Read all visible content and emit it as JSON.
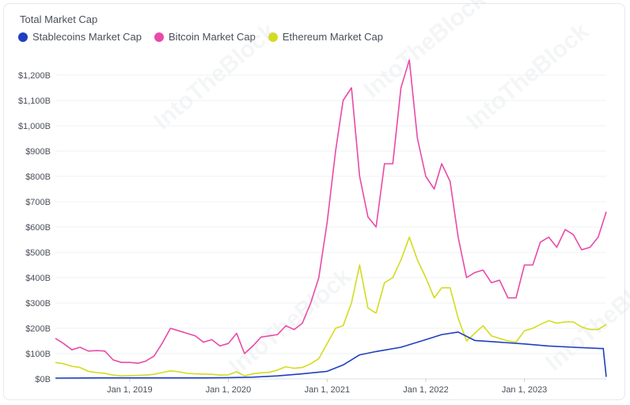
{
  "chart_data": {
    "type": "line",
    "title": "Total Market Cap",
    "xlabel": "",
    "ylabel": "",
    "x_range": [
      "2018-04-01",
      "2023-10-31"
    ],
    "ylim": [
      0,
      1200
    ],
    "y_ticks": [
      "$0B",
      "$100B",
      "$200B",
      "$300B",
      "$400B",
      "$500B",
      "$600B",
      "$700B",
      "$800B",
      "$900B",
      "$1,000B",
      "$1,100B",
      "$1,200B"
    ],
    "x_ticks": [
      "Jan 1, 2019",
      "Jan 1, 2020",
      "Jan 1, 2021",
      "Jan 1, 2022",
      "Jan 1, 2023"
    ],
    "grid": true,
    "legend": "top-left",
    "series": [
      {
        "name": "Stablecoins Market Cap",
        "color": "#1f3fbf",
        "points": [
          [
            "2018-04-01",
            3
          ],
          [
            "2018-10-01",
            4
          ],
          [
            "2019-04-01",
            4
          ],
          [
            "2019-10-01",
            4
          ],
          [
            "2020-01-01",
            5
          ],
          [
            "2020-04-01",
            7
          ],
          [
            "2020-07-01",
            12
          ],
          [
            "2020-10-01",
            20
          ],
          [
            "2021-01-01",
            30
          ],
          [
            "2021-03-01",
            55
          ],
          [
            "2021-05-01",
            95
          ],
          [
            "2021-07-01",
            108
          ],
          [
            "2021-10-01",
            125
          ],
          [
            "2022-01-01",
            155
          ],
          [
            "2022-03-01",
            175
          ],
          [
            "2022-05-01",
            185
          ],
          [
            "2022-07-01",
            152
          ],
          [
            "2022-10-01",
            145
          ],
          [
            "2023-01-01",
            138
          ],
          [
            "2023-04-01",
            130
          ],
          [
            "2023-07-01",
            125
          ],
          [
            "2023-10-10",
            120
          ],
          [
            "2023-10-20",
            120
          ],
          [
            "2023-10-31",
            8
          ]
        ]
      },
      {
        "name": "Bitcoin Market Cap",
        "color": "#e94aa8",
        "points": [
          [
            "2018-04-01",
            160
          ],
          [
            "2018-05-01",
            140
          ],
          [
            "2018-06-01",
            115
          ],
          [
            "2018-07-01",
            125
          ],
          [
            "2018-08-01",
            110
          ],
          [
            "2018-09-01",
            112
          ],
          [
            "2018-10-01",
            110
          ],
          [
            "2018-11-01",
            75
          ],
          [
            "2018-12-01",
            65
          ],
          [
            "2019-01-01",
            65
          ],
          [
            "2019-02-01",
            62
          ],
          [
            "2019-03-01",
            70
          ],
          [
            "2019-04-01",
            90
          ],
          [
            "2019-05-01",
            140
          ],
          [
            "2019-06-01",
            200
          ],
          [
            "2019-07-01",
            190
          ],
          [
            "2019-08-01",
            180
          ],
          [
            "2019-09-01",
            170
          ],
          [
            "2019-10-01",
            145
          ],
          [
            "2019-11-01",
            155
          ],
          [
            "2019-12-01",
            130
          ],
          [
            "2020-01-01",
            140
          ],
          [
            "2020-02-01",
            180
          ],
          [
            "2020-03-01",
            100
          ],
          [
            "2020-04-01",
            130
          ],
          [
            "2020-05-01",
            165
          ],
          [
            "2020-06-01",
            170
          ],
          [
            "2020-07-01",
            175
          ],
          [
            "2020-08-01",
            210
          ],
          [
            "2020-09-01",
            195
          ],
          [
            "2020-10-01",
            220
          ],
          [
            "2020-11-01",
            300
          ],
          [
            "2020-12-01",
            400
          ],
          [
            "2021-01-01",
            620
          ],
          [
            "2021-02-01",
            900
          ],
          [
            "2021-03-01",
            1100
          ],
          [
            "2021-04-01",
            1150
          ],
          [
            "2021-05-01",
            800
          ],
          [
            "2021-06-01",
            640
          ],
          [
            "2021-07-01",
            600
          ],
          [
            "2021-08-01",
            850
          ],
          [
            "2021-09-01",
            850
          ],
          [
            "2021-10-01",
            1150
          ],
          [
            "2021-11-01",
            1260
          ],
          [
            "2021-12-01",
            950
          ],
          [
            "2022-01-01",
            800
          ],
          [
            "2022-02-01",
            750
          ],
          [
            "2022-03-01",
            850
          ],
          [
            "2022-04-01",
            780
          ],
          [
            "2022-05-01",
            560
          ],
          [
            "2022-06-01",
            400
          ],
          [
            "2022-07-01",
            420
          ],
          [
            "2022-08-01",
            430
          ],
          [
            "2022-09-01",
            380
          ],
          [
            "2022-10-01",
            390
          ],
          [
            "2022-11-01",
            320
          ],
          [
            "2022-12-01",
            320
          ],
          [
            "2023-01-01",
            450
          ],
          [
            "2023-02-01",
            450
          ],
          [
            "2023-03-01",
            540
          ],
          [
            "2023-04-01",
            560
          ],
          [
            "2023-05-01",
            520
          ],
          [
            "2023-06-01",
            590
          ],
          [
            "2023-07-01",
            570
          ],
          [
            "2023-08-01",
            510
          ],
          [
            "2023-09-01",
            520
          ],
          [
            "2023-10-01",
            560
          ],
          [
            "2023-10-31",
            660
          ]
        ]
      },
      {
        "name": "Ethereum Market Cap",
        "color": "#d4dc1e",
        "points": [
          [
            "2018-04-01",
            65
          ],
          [
            "2018-05-01",
            60
          ],
          [
            "2018-06-01",
            50
          ],
          [
            "2018-07-01",
            45
          ],
          [
            "2018-08-01",
            30
          ],
          [
            "2018-09-01",
            25
          ],
          [
            "2018-10-01",
            22
          ],
          [
            "2018-11-01",
            15
          ],
          [
            "2018-12-01",
            12
          ],
          [
            "2019-01-01",
            13
          ],
          [
            "2019-02-01",
            14
          ],
          [
            "2019-03-01",
            15
          ],
          [
            "2019-04-01",
            18
          ],
          [
            "2019-05-01",
            25
          ],
          [
            "2019-06-01",
            32
          ],
          [
            "2019-07-01",
            28
          ],
          [
            "2019-08-01",
            22
          ],
          [
            "2019-09-01",
            20
          ],
          [
            "2019-10-01",
            19
          ],
          [
            "2019-11-01",
            18
          ],
          [
            "2019-12-01",
            15
          ],
          [
            "2020-01-01",
            16
          ],
          [
            "2020-02-01",
            28
          ],
          [
            "2020-03-01",
            12
          ],
          [
            "2020-04-01",
            20
          ],
          [
            "2020-05-01",
            24
          ],
          [
            "2020-06-01",
            26
          ],
          [
            "2020-07-01",
            35
          ],
          [
            "2020-08-01",
            48
          ],
          [
            "2020-09-01",
            42
          ],
          [
            "2020-10-01",
            45
          ],
          [
            "2020-11-01",
            60
          ],
          [
            "2020-12-01",
            80
          ],
          [
            "2021-01-01",
            140
          ],
          [
            "2021-02-01",
            200
          ],
          [
            "2021-03-01",
            210
          ],
          [
            "2021-04-01",
            300
          ],
          [
            "2021-05-01",
            450
          ],
          [
            "2021-06-01",
            280
          ],
          [
            "2021-07-01",
            260
          ],
          [
            "2021-08-01",
            380
          ],
          [
            "2021-09-01",
            400
          ],
          [
            "2021-10-01",
            470
          ],
          [
            "2021-11-01",
            560
          ],
          [
            "2021-12-01",
            470
          ],
          [
            "2022-01-01",
            400
          ],
          [
            "2022-02-01",
            320
          ],
          [
            "2022-03-01",
            360
          ],
          [
            "2022-04-01",
            360
          ],
          [
            "2022-05-01",
            240
          ],
          [
            "2022-06-01",
            150
          ],
          [
            "2022-07-01",
            180
          ],
          [
            "2022-08-01",
            210
          ],
          [
            "2022-09-01",
            170
          ],
          [
            "2022-10-01",
            160
          ],
          [
            "2022-11-01",
            150
          ],
          [
            "2022-12-01",
            145
          ],
          [
            "2023-01-01",
            190
          ],
          [
            "2023-02-01",
            200
          ],
          [
            "2023-03-01",
            215
          ],
          [
            "2023-04-01",
            230
          ],
          [
            "2023-05-01",
            220
          ],
          [
            "2023-06-01",
            225
          ],
          [
            "2023-07-01",
            225
          ],
          [
            "2023-08-01",
            205
          ],
          [
            "2023-09-01",
            195
          ],
          [
            "2023-10-01",
            195
          ],
          [
            "2023-10-31",
            215
          ]
        ]
      }
    ]
  },
  "watermark": "IntoTheBlock"
}
